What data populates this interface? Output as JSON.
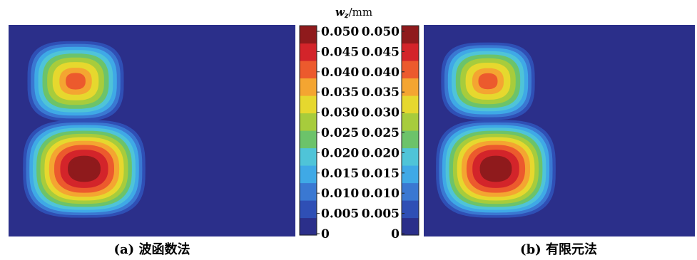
{
  "chart_data": [
    {
      "type": "heatmap",
      "panel_label": "(a)",
      "caption": "波函数法",
      "grid": false,
      "peaks": [
        {
          "region": "upper",
          "max_value": 0.038
        },
        {
          "region": "lower",
          "max_value": 0.05
        }
      ]
    },
    {
      "type": "heatmap",
      "panel_label": "(b)",
      "caption": "有限元法",
      "grid": false,
      "peaks": [
        {
          "region": "upper",
          "max_value": 0.038
        },
        {
          "region": "lower",
          "max_value": 0.05
        }
      ]
    }
  ],
  "colorbar": {
    "title_var": "w",
    "title_sub": "z",
    "title_unit": "/mm",
    "range": [
      0,
      0.05
    ],
    "ticks": [
      "0",
      "0.005",
      "0.010",
      "0.015",
      "0.020",
      "0.025",
      "0.030",
      "0.035",
      "0.040",
      "0.045",
      "0.050"
    ],
    "colormap": [
      "#2b2f8a",
      "#2f4fb5",
      "#3a78d2",
      "#3fa9e6",
      "#4fc4d8",
      "#6cc36a",
      "#a7cc3c",
      "#e6d82e",
      "#f4a531",
      "#ec5a2d",
      "#d3242a",
      "#8f1a1c"
    ]
  },
  "colors": {
    "background": "#2b2f8a",
    "frame": "#ffffff"
  }
}
